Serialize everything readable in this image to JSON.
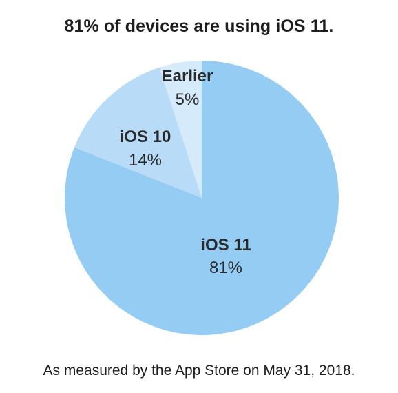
{
  "chart_data": {
    "type": "pie",
    "title": "81% of devices are using iOS 11.",
    "slices": [
      {
        "label": "iOS 11",
        "value": 81,
        "value_label": "81%",
        "color": "#94ccf4"
      },
      {
        "label": "iOS 10",
        "value": 14,
        "value_label": "14%",
        "color": "#b8dcf7"
      },
      {
        "label": "Earlier",
        "value": 5,
        "value_label": "5%",
        "color": "#d5eafa"
      }
    ],
    "footnote": "As measured by the App Store on May 31, 2018."
  }
}
